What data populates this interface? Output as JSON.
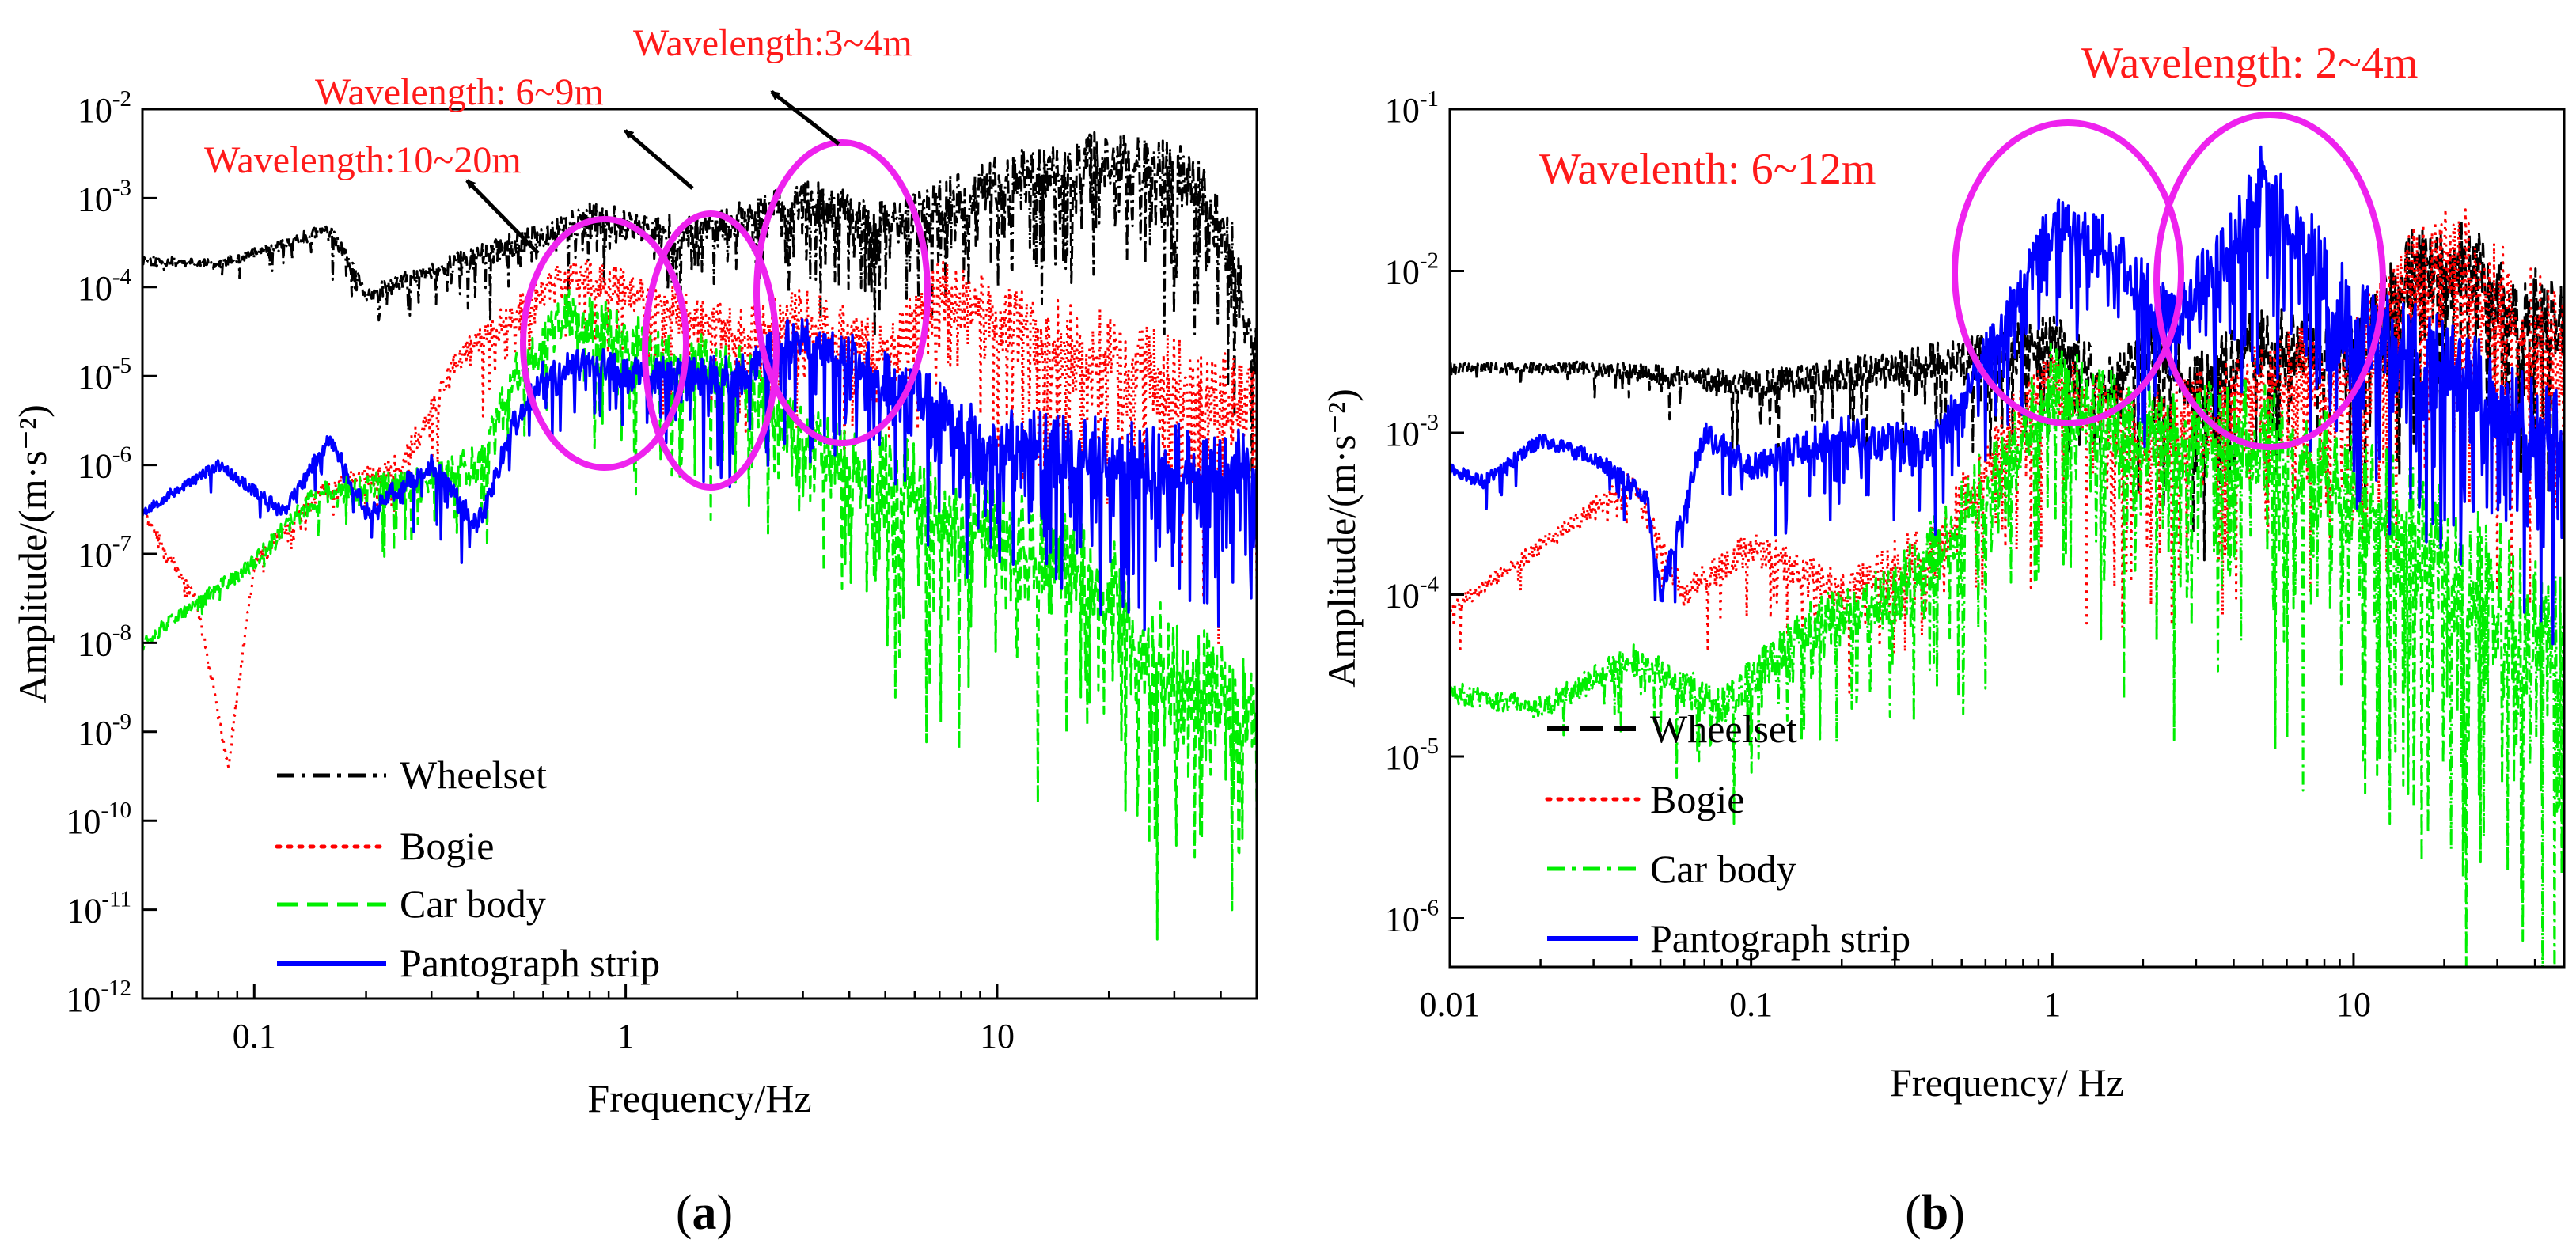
{
  "chart_data": [
    {
      "id": "a",
      "type": "line",
      "caption_letter": "a",
      "caption_open": "(",
      "caption_close": ")",
      "xlabel": "Frequency/Hz",
      "ylabel": "Amplitude/(m·s⁻²)",
      "xscale": "log",
      "yscale": "log",
      "xlim": [
        0.05,
        50
      ],
      "ylim": [
        1e-12,
        0.01
      ],
      "xticks": [
        {
          "value": 0.1,
          "label": "0.1"
        },
        {
          "value": 1,
          "label": "1"
        },
        {
          "value": 10,
          "label": "10"
        }
      ],
      "yticks": [
        {
          "value": 1e-12,
          "label": "10",
          "exp": "-12"
        },
        {
          "value": 1e-11,
          "label": "10",
          "exp": "-11"
        },
        {
          "value": 1e-10,
          "label": "10",
          "exp": "-10"
        },
        {
          "value": 1e-09,
          "label": "10",
          "exp": "-9"
        },
        {
          "value": 1e-08,
          "label": "10",
          "exp": "-8"
        },
        {
          "value": 1e-07,
          "label": "10",
          "exp": "-7"
        },
        {
          "value": 1e-06,
          "label": "10",
          "exp": "-6"
        },
        {
          "value": 1e-05,
          "label": "10",
          "exp": "-5"
        },
        {
          "value": 0.0001,
          "label": "10",
          "exp": "-4"
        },
        {
          "value": 0.001,
          "label": "10",
          "exp": "-3"
        },
        {
          "value": 0.01,
          "label": "10",
          "exp": "-2"
        }
      ],
      "legend_position": "bottom-left",
      "series": [
        {
          "name": "Wheelset",
          "color": "#000000",
          "dash": "dashdot",
          "seed": 11,
          "noise": 0.7,
          "points": [
            [
              0.05,
              0.0002
            ],
            [
              0.08,
              0.00018
            ],
            [
              0.12,
              0.0003
            ],
            [
              0.16,
              0.00045
            ],
            [
              0.2,
              8e-05
            ],
            [
              0.3,
              0.00015
            ],
            [
              0.5,
              0.0003
            ],
            [
              0.8,
              0.0006
            ],
            [
              1.5,
              0.0004
            ],
            [
              3,
              0.001
            ],
            [
              5,
              0.0005
            ],
            [
              10,
              0.0015
            ],
            [
              20,
              0.003
            ],
            [
              30,
              0.002
            ],
            [
              40,
              0.0008
            ],
            [
              50,
              2e-05
            ]
          ]
        },
        {
          "name": "Bogie",
          "color": "#ff0000",
          "dash": "dot",
          "seed": 23,
          "noise": 0.9,
          "points": [
            [
              0.05,
              3e-07
            ],
            [
              0.07,
              3e-08
            ],
            [
              0.085,
              4e-10
            ],
            [
              0.1,
              8e-08
            ],
            [
              0.15,
              5e-07
            ],
            [
              0.25,
              1e-06
            ],
            [
              0.35,
              1.5e-05
            ],
            [
              0.5,
              5e-05
            ],
            [
              0.7,
              0.00015
            ],
            [
              1,
              0.0001
            ],
            [
              2,
              3e-05
            ],
            [
              3,
              5e-05
            ],
            [
              5,
              2e-05
            ],
            [
              7,
              0.0001
            ],
            [
              10,
              5e-05
            ],
            [
              20,
              2e-05
            ],
            [
              50,
              5e-06
            ]
          ]
        },
        {
          "name": "Car body",
          "color": "#00ee00",
          "dash": "dash",
          "seed": 37,
          "noise": 1.2,
          "points": [
            [
              0.05,
              1e-08
            ],
            [
              0.1,
              8e-08
            ],
            [
              0.15,
              5e-07
            ],
            [
              0.25,
              6e-07
            ],
            [
              0.4,
              1e-06
            ],
            [
              0.5,
              1e-05
            ],
            [
              0.7,
              5e-05
            ],
            [
              1,
              3e-05
            ],
            [
              2,
              1e-05
            ],
            [
              3,
              2e-06
            ],
            [
              5,
              1e-06
            ],
            [
              10,
              2e-07
            ],
            [
              20,
              5e-08
            ],
            [
              30,
              5e-09
            ],
            [
              50,
              2e-09
            ]
          ]
        },
        {
          "name": "Pantograph strip",
          "color": "#0000ff",
          "dash": "solid",
          "seed": 53,
          "noise": 0.8,
          "points": [
            [
              0.05,
              3e-07
            ],
            [
              0.08,
              1e-06
            ],
            [
              0.12,
              3e-07
            ],
            [
              0.16,
              2e-06
            ],
            [
              0.2,
              3e-07
            ],
            [
              0.3,
              1e-06
            ],
            [
              0.4,
              2e-07
            ],
            [
              0.5,
              3e-06
            ],
            [
              0.6,
              1e-05
            ],
            [
              0.8,
              1.5e-05
            ],
            [
              1,
              1e-05
            ],
            [
              2,
              1e-05
            ],
            [
              3,
              3e-05
            ],
            [
              5,
              1e-05
            ],
            [
              10,
              2e-06
            ],
            [
              20,
              1.5e-06
            ],
            [
              50,
              1e-06
            ]
          ]
        }
      ],
      "annotations": [
        {
          "text": "Wavelength:10~20m",
          "x_freq": 0.8,
          "y_amp": 3e-05
        },
        {
          "text": "Wavelength: 6~9m",
          "x_freq": 1.7,
          "y_amp": 1e-05
        },
        {
          "text": "Wavelength:3~4m",
          "x_freq": 3.7,
          "y_amp": 2e-05
        }
      ]
    },
    {
      "id": "b",
      "type": "line",
      "caption_letter": "b",
      "caption_open": "(",
      "caption_close": ")",
      "xlabel": "Frequency/ Hz",
      "ylabel": "Amplitude/(m·s⁻²)",
      "xscale": "log",
      "yscale": "log",
      "xlim": [
        0.01,
        50
      ],
      "ylim": [
        5e-07,
        0.1
      ],
      "xticks": [
        {
          "value": 0.01,
          "label": "0.01"
        },
        {
          "value": 0.1,
          "label": "0.1"
        },
        {
          "value": 1,
          "label": "1"
        },
        {
          "value": 10,
          "label": "10"
        }
      ],
      "yticks": [
        {
          "value": 1e-06,
          "label": "10",
          "exp": "-6"
        },
        {
          "value": 1e-05,
          "label": "10",
          "exp": "-5"
        },
        {
          "value": 0.0001,
          "label": "10",
          "exp": "-4"
        },
        {
          "value": 0.001,
          "label": "10",
          "exp": "-3"
        },
        {
          "value": 0.01,
          "label": "10",
          "exp": "-2"
        },
        {
          "value": 0.1,
          "label": "10",
          "exp": "-1"
        }
      ],
      "legend_position": "bottom-left",
      "series": [
        {
          "name": "Wheelset",
          "color": "#000000",
          "dash": "dash",
          "seed": 61,
          "noise": 0.5,
          "points": [
            [
              0.01,
              0.0025
            ],
            [
              0.03,
              0.0025
            ],
            [
              0.1,
              0.002
            ],
            [
              0.3,
              0.0025
            ],
            [
              0.6,
              0.003
            ],
            [
              1,
              0.004
            ],
            [
              1.6,
              0.002
            ],
            [
              2,
              0.004
            ],
            [
              3,
              0.002
            ],
            [
              5,
              0.004
            ],
            [
              10,
              0.003
            ],
            [
              15,
              0.01
            ],
            [
              20,
              0.015
            ],
            [
              30,
              0.008
            ],
            [
              50,
              0.005
            ]
          ]
        },
        {
          "name": "Bogie",
          "color": "#ff0000",
          "dash": "dot",
          "seed": 71,
          "noise": 0.7,
          "points": [
            [
              0.01,
              8e-05
            ],
            [
              0.02,
              0.0002
            ],
            [
              0.04,
              0.0005
            ],
            [
              0.06,
              0.0001
            ],
            [
              0.1,
              0.0002
            ],
            [
              0.2,
              0.0001
            ],
            [
              0.4,
              0.0002
            ],
            [
              0.7,
              0.001
            ],
            [
              1,
              0.002
            ],
            [
              2,
              0.001
            ],
            [
              5,
              0.002
            ],
            [
              10,
              0.003
            ],
            [
              15,
              0.008
            ],
            [
              20,
              0.015
            ],
            [
              50,
              0.003
            ]
          ]
        },
        {
          "name": "Car body",
          "color": "#00ee00",
          "dash": "dashdot",
          "seed": 83,
          "noise": 0.9,
          "points": [
            [
              0.01,
              2.5e-05
            ],
            [
              0.02,
              2e-05
            ],
            [
              0.04,
              4e-05
            ],
            [
              0.08,
              2e-05
            ],
            [
              0.15,
              6e-05
            ],
            [
              0.3,
              0.0001
            ],
            [
              0.5,
              0.0003
            ],
            [
              0.8,
              0.001
            ],
            [
              1,
              0.002
            ],
            [
              2,
              0.001
            ],
            [
              5,
              0.001
            ],
            [
              10,
              0.0005
            ],
            [
              20,
              0.0002
            ],
            [
              50,
              5e-05
            ]
          ]
        },
        {
          "name": "Pantograph strip",
          "color": "#0000ff",
          "dash": "solid",
          "seed": 97,
          "noise": 0.55,
          "points": [
            [
              0.01,
              0.0006
            ],
            [
              0.013,
              0.0005
            ],
            [
              0.02,
              0.0009
            ],
            [
              0.03,
              0.0007
            ],
            [
              0.045,
              0.0004
            ],
            [
              0.05,
              0.0001
            ],
            [
              0.07,
              0.001
            ],
            [
              0.1,
              0.0006
            ],
            [
              0.2,
              0.001
            ],
            [
              0.4,
              0.0008
            ],
            [
              0.6,
              0.003
            ],
            [
              0.8,
              0.008
            ],
            [
              1,
              0.02
            ],
            [
              1.5,
              0.015
            ],
            [
              2.5,
              0.005
            ],
            [
              4,
              0.015
            ],
            [
              5,
              0.04
            ],
            [
              7,
              0.015
            ],
            [
              10,
              0.005
            ],
            [
              20,
              0.003
            ],
            [
              50,
              0.001
            ]
          ]
        }
      ],
      "annotations": [
        {
          "text": "Wavelenth: 6~12m",
          "x_freq": 1.0,
          "y_amp": 0.01
        },
        {
          "text": "Wavelength: 2~4m",
          "x_freq": 5.2,
          "y_amp": 0.01
        }
      ]
    }
  ]
}
